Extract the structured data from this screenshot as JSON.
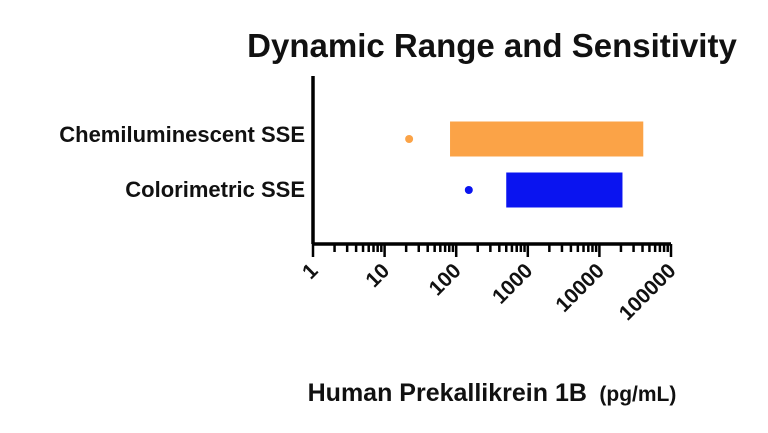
{
  "chart_data": {
    "type": "bar",
    "title": "Dynamic Range and Sensitivity",
    "xlabel": "Human Prekallikrein 1B",
    "xlabel_unit": "(pg/mL)",
    "ylabel": "",
    "x_scale": "log",
    "xlim": [
      1,
      100000
    ],
    "x_ticks": [
      "1",
      "10",
      "100",
      "1000",
      "10000",
      "100000"
    ],
    "categories": [
      "Chemiluminescent SSE",
      "Colorimetric SSE"
    ],
    "series": [
      {
        "category": "Chemiluminescent SSE",
        "sensitivity": 22,
        "range": [
          82,
          41000
        ],
        "color": "#FBA347"
      },
      {
        "category": "Colorimetric SSE",
        "sensitivity": 150,
        "range": [
          500,
          21000
        ],
        "color": "#0A14F0"
      }
    ],
    "grid": false,
    "legend": "none"
  }
}
